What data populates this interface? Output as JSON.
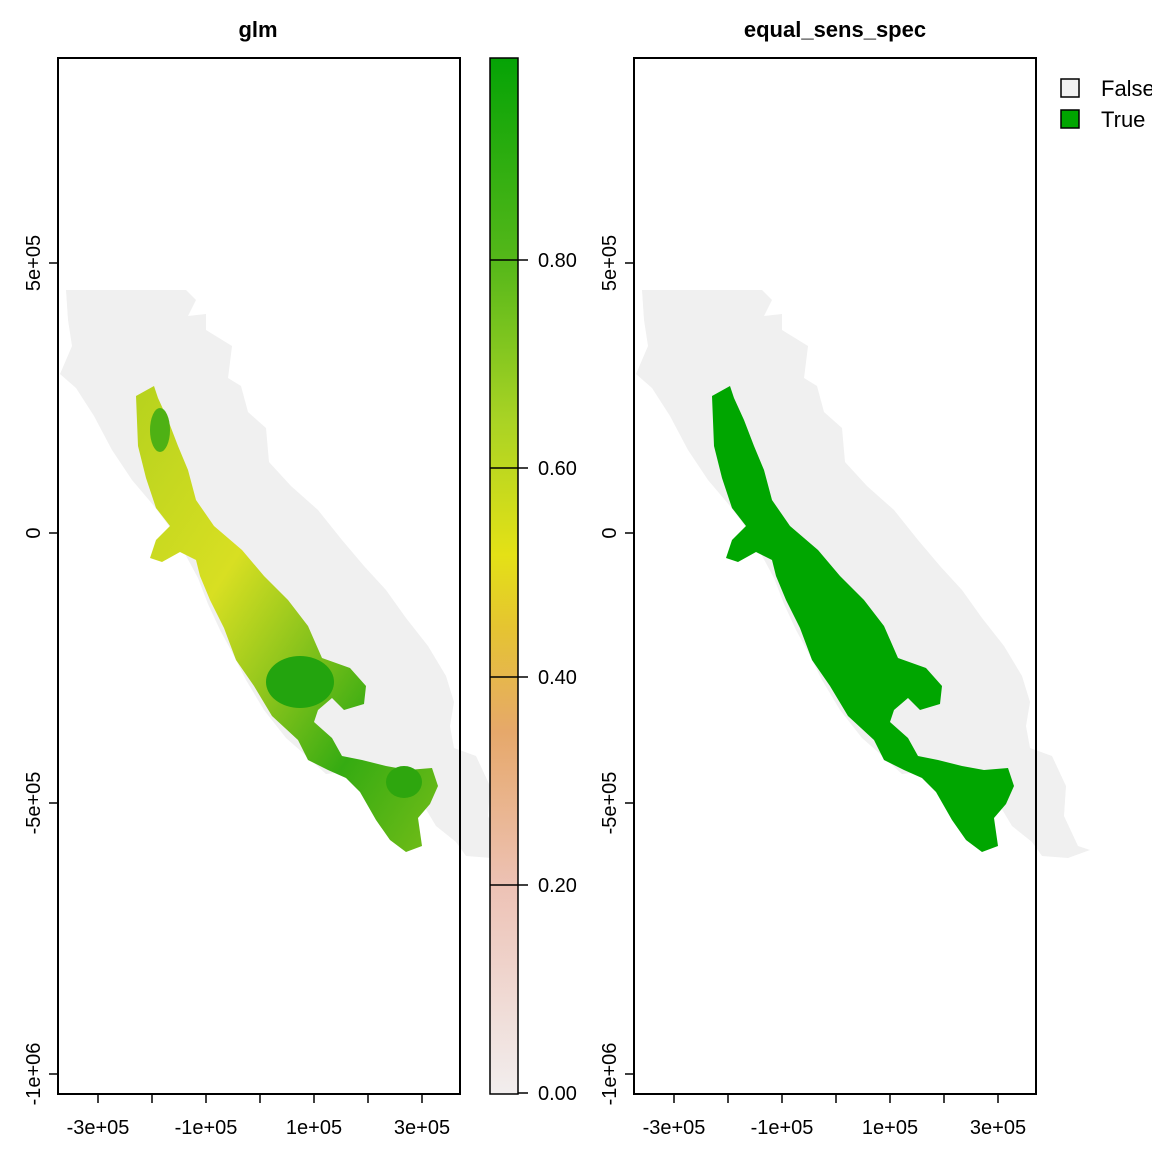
{
  "panels": [
    {
      "title": "glm",
      "x_ticks": [
        "-3e+05",
        "-1e+05",
        "1e+05",
        "3e+05"
      ],
      "y_ticks": [
        "5e+05",
        "0",
        "-5e+05",
        "-1e+06"
      ]
    },
    {
      "title": "equal_sens_spec",
      "x_ticks": [
        "-3e+05",
        "-1e+05",
        "1e+05",
        "3e+05"
      ],
      "y_ticks": [
        "5e+05",
        "0",
        "-5e+05",
        "-1e+06"
      ]
    }
  ],
  "colorbar": {
    "labels": [
      "0.80",
      "0.60",
      "0.40",
      "0.20",
      "0.00"
    ],
    "colors": {
      "low": "#f2f2f2",
      "pink": "#e6b8a8",
      "orange": "#e3b24a",
      "yellow": "#e5e31e",
      "green": "#2ea60e",
      "high": "#00a300"
    }
  },
  "legend": {
    "items": [
      {
        "label": "False",
        "color": "#f2f2f2"
      },
      {
        "label": "True",
        "color": "#00a600"
      }
    ]
  },
  "colors": {
    "background_land": "#f0f0f0",
    "presence": "#00a600",
    "axis": "#000000"
  }
}
